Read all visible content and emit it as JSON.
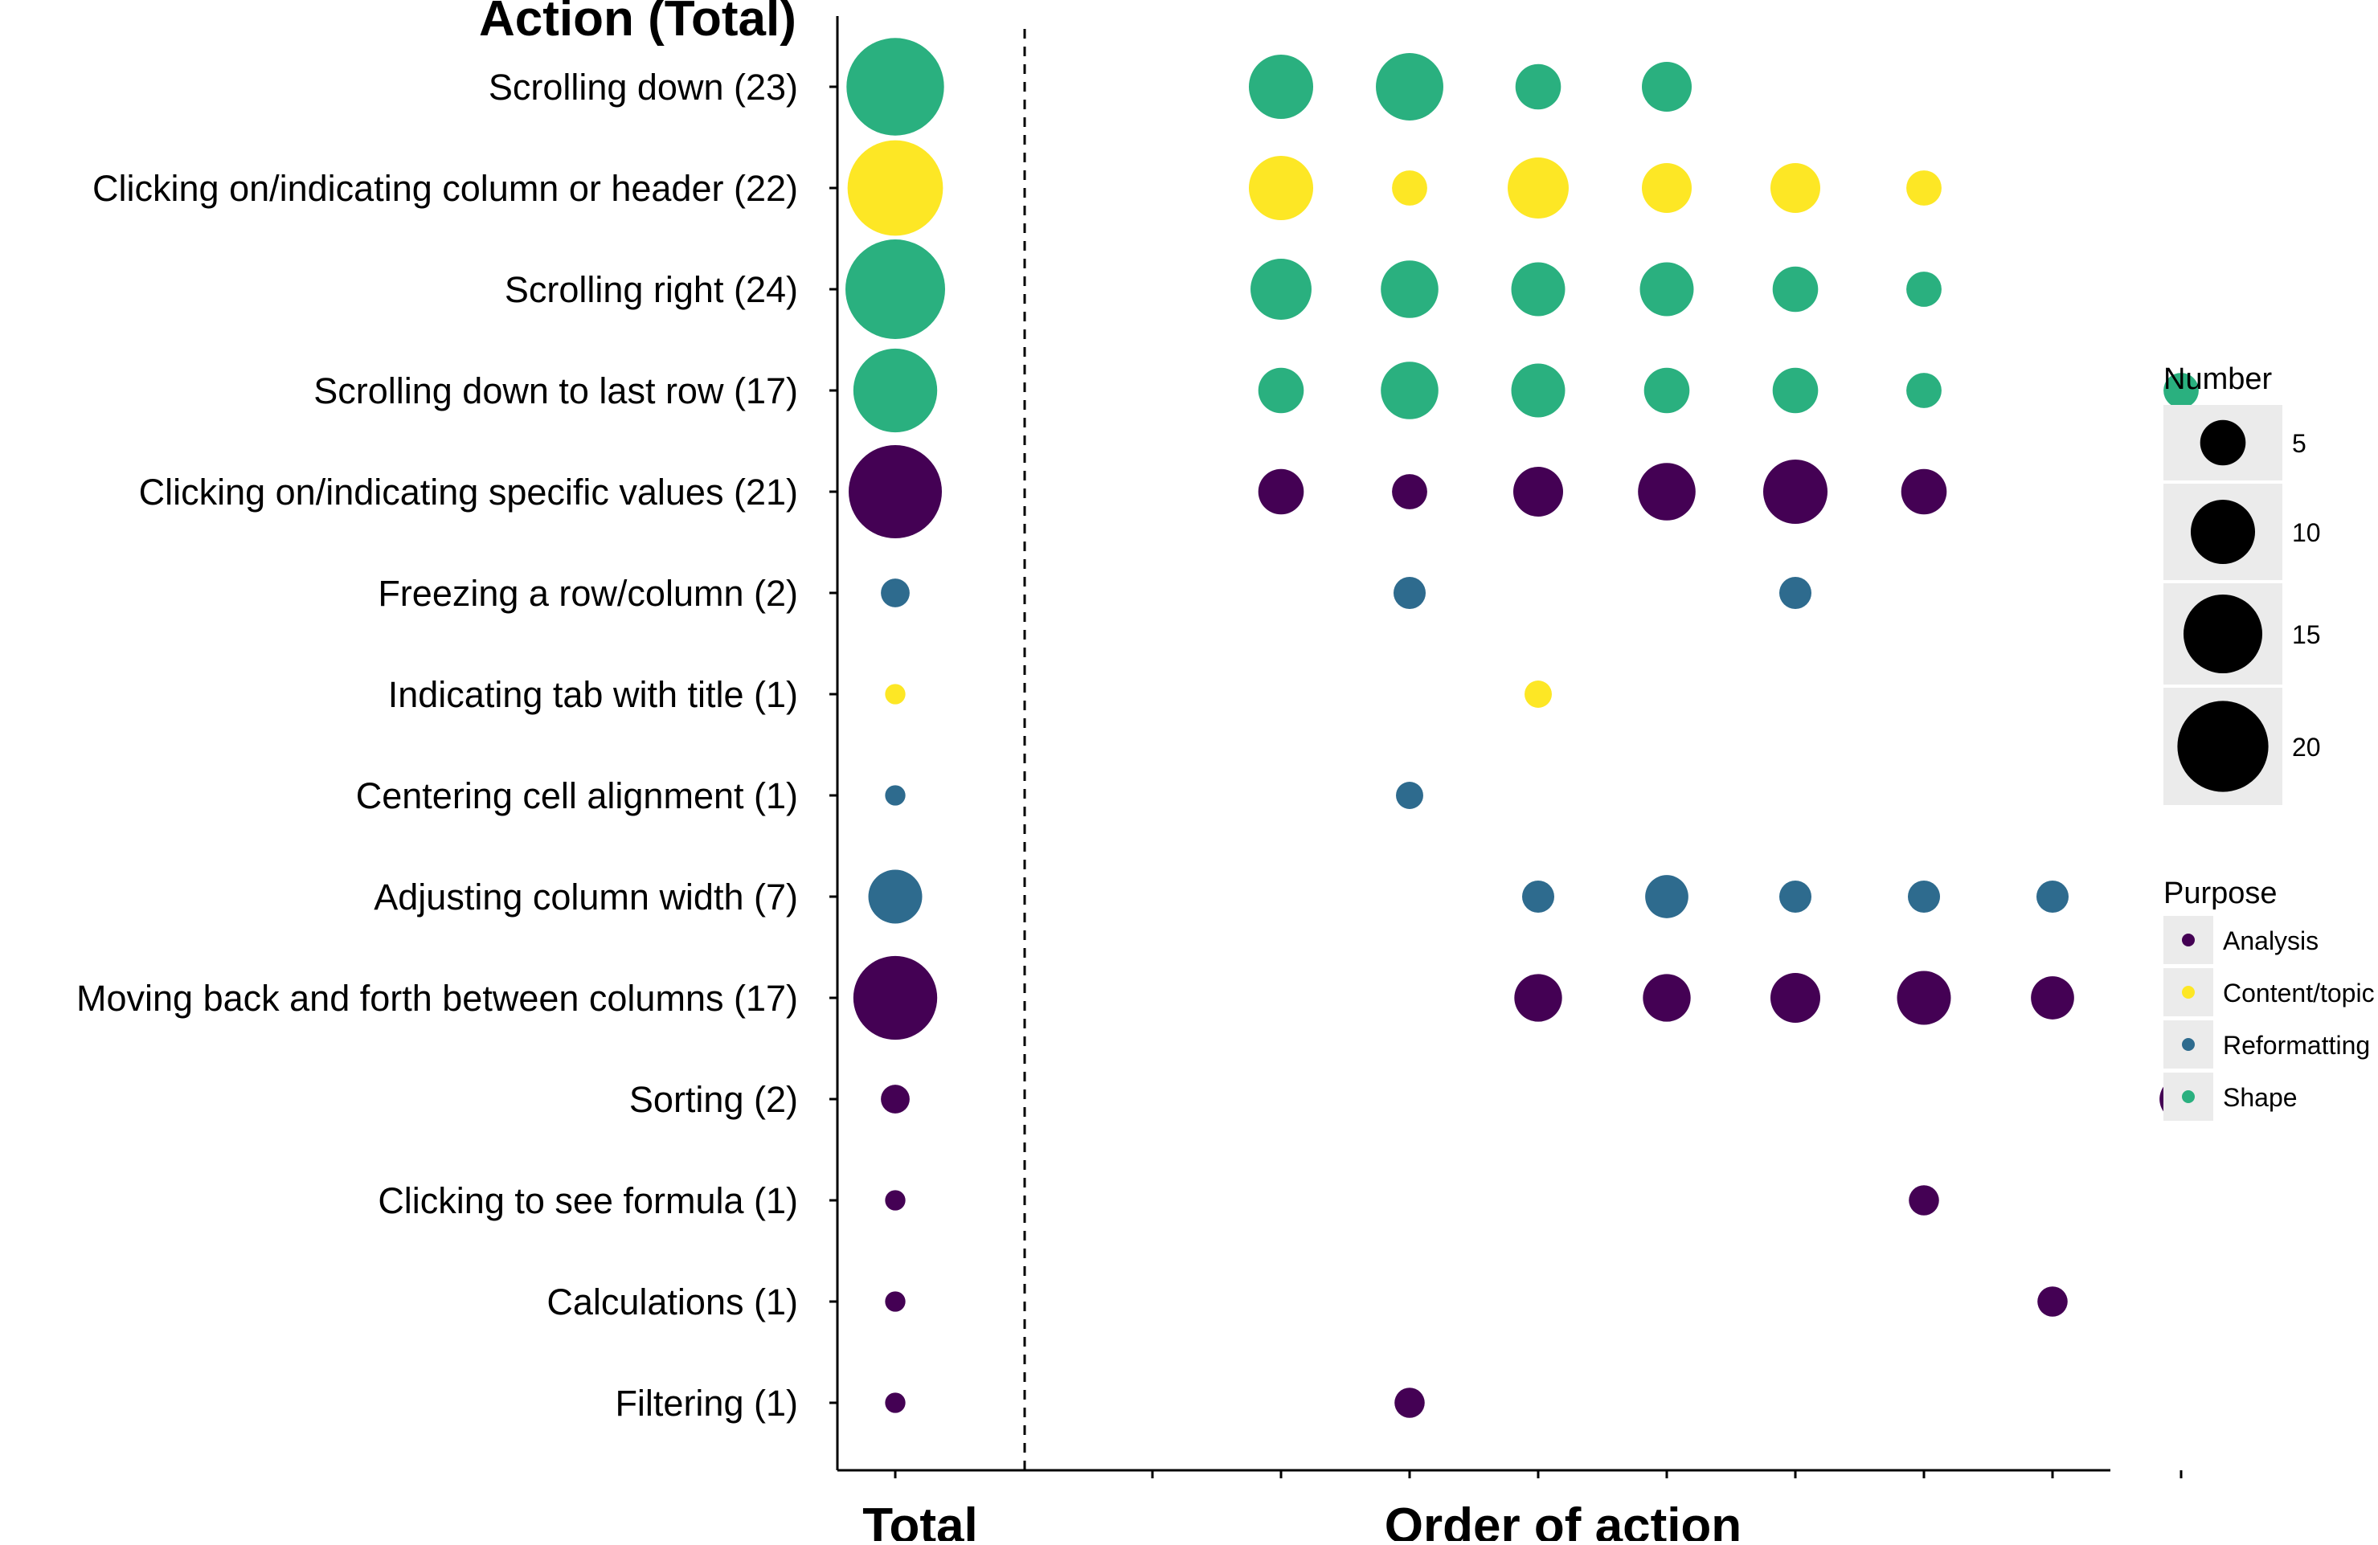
{
  "chart_data": {
    "type": "scatter",
    "title": "Action (Total)",
    "x_axis_titles": {
      "total": "Total",
      "order": "Order of action"
    },
    "order_positions": 8,
    "size_scale_max": 24,
    "colors": {
      "Analysis": "#440154",
      "Content/topic": "#fde725",
      "Reformatting": "#2e6b8e",
      "Shape": "#2ab07f"
    },
    "rows": [
      {
        "label": "Scrolling down (23)",
        "total": 23,
        "purpose": "Shape",
        "order": [
          null,
          10,
          11,
          5,
          6,
          null,
          null,
          null,
          null
        ]
      },
      {
        "label": "Clicking on/indicating column or header (22)",
        "total": 22,
        "purpose": "Content/topic",
        "order": [
          null,
          10,
          3,
          9,
          6,
          6,
          3,
          null,
          null
        ]
      },
      {
        "label": "Scrolling right (24)",
        "total": 24,
        "purpose": "Shape",
        "order": [
          null,
          9,
          8,
          7,
          7,
          5,
          3,
          null,
          null
        ]
      },
      {
        "label": "Scrolling down to last row (17)",
        "total": 17,
        "purpose": "Shape",
        "order": [
          null,
          5,
          8,
          7,
          5,
          5,
          3,
          null,
          3
        ]
      },
      {
        "label": "Clicking on/indicating specific values (21)",
        "total": 21,
        "purpose": "Analysis",
        "order": [
          null,
          5,
          3,
          6,
          8,
          10,
          5,
          null,
          null
        ]
      },
      {
        "label": "Freezing a row/column (2)",
        "total": 2,
        "purpose": "Reformatting",
        "order": [
          null,
          null,
          2.5,
          null,
          null,
          2.5,
          null,
          null,
          null
        ]
      },
      {
        "label": "Indicating tab with title (1)",
        "total": 1,
        "purpose": "Content/topic",
        "order": [
          null,
          null,
          null,
          1.8,
          null,
          null,
          null,
          null,
          null
        ]
      },
      {
        "label": "Centering cell alignment (1)",
        "total": 1,
        "purpose": "Reformatting",
        "order": [
          null,
          null,
          1.8,
          null,
          null,
          null,
          null,
          null,
          null
        ]
      },
      {
        "label": "Adjusting column width (7)",
        "total": 7,
        "purpose": "Reformatting",
        "order": [
          null,
          null,
          null,
          2.5,
          4.5,
          2.5,
          2.5,
          2.5,
          null
        ]
      },
      {
        "label": "Moving back and forth between columns (17)",
        "total": 17,
        "purpose": "Analysis",
        "order": [
          null,
          null,
          null,
          5.5,
          5.5,
          6,
          7,
          4.5,
          null
        ]
      },
      {
        "label": "Sorting (2)",
        "total": 2,
        "purpose": "Analysis",
        "order": [
          null,
          null,
          null,
          null,
          null,
          null,
          null,
          null,
          4.5
        ]
      },
      {
        "label": "Clicking to see formula (1)",
        "total": 1,
        "purpose": "Analysis",
        "order": [
          null,
          null,
          null,
          null,
          null,
          null,
          2.2,
          null,
          null
        ]
      },
      {
        "label": "Calculations (1)",
        "total": 1,
        "purpose": "Analysis",
        "order": [
          null,
          null,
          null,
          null,
          null,
          null,
          null,
          2.2,
          null
        ]
      },
      {
        "label": "Filtering (1)",
        "total": 1,
        "purpose": "Analysis",
        "order": [
          null,
          null,
          2.2,
          null,
          null,
          null,
          null,
          null,
          null
        ]
      }
    ],
    "legend_size": {
      "title": "Number",
      "entries": [
        {
          "label": "5",
          "value": 5
        },
        {
          "label": "10",
          "value": 10
        },
        {
          "label": "15",
          "value": 15
        },
        {
          "label": "20",
          "value": 20
        }
      ]
    },
    "legend_color": {
      "title": "Purpose",
      "entries": [
        "Analysis",
        "Content/topic",
        "Reformatting",
        "Shape"
      ]
    }
  }
}
